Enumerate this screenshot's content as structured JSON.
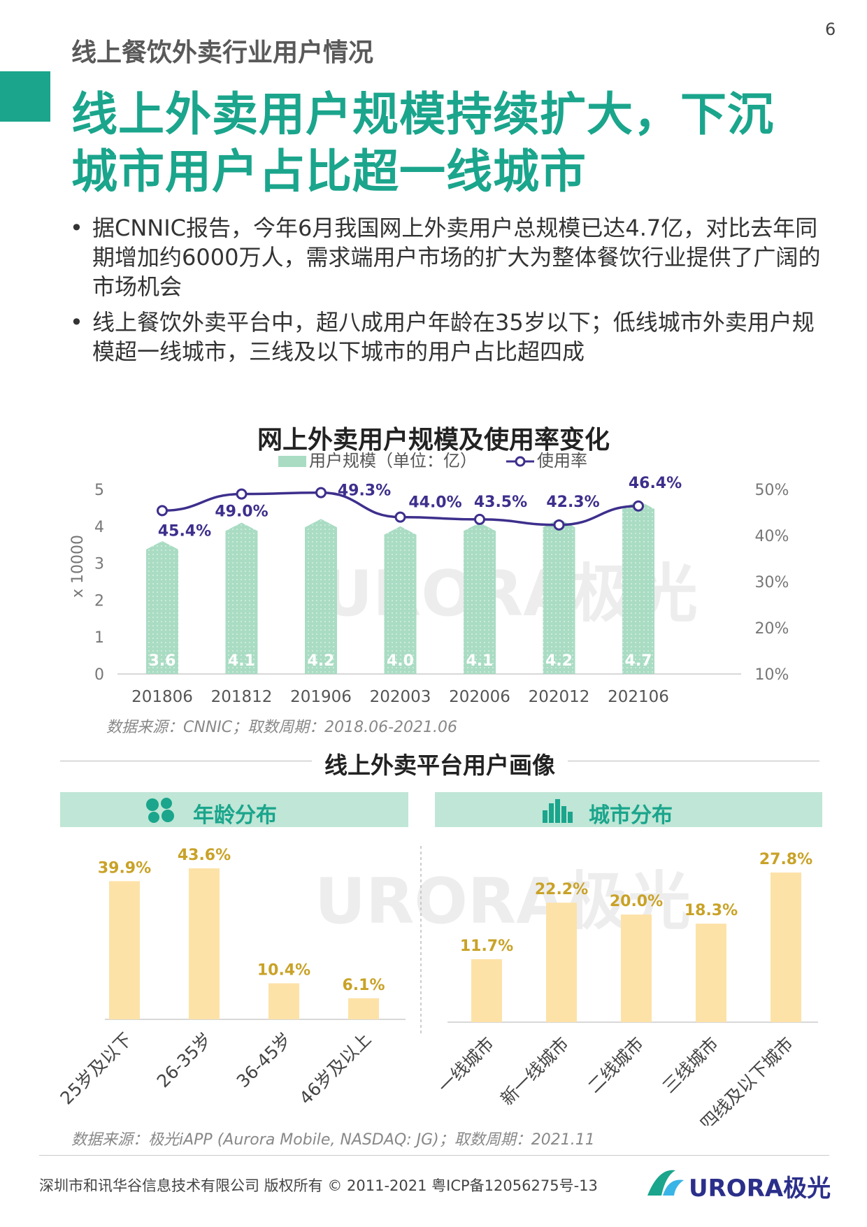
{
  "page_number": "6",
  "section_label": "线上餐饮外卖行业用户情况",
  "headline": [
    "线上外卖用户规模持续扩大，下沉",
    "城市用户占比超一线城市"
  ],
  "bullets": [
    "据CNNIC报告，今年6月我国网上外卖用户总规模已达4.7亿，对比去年同期增加约6000万人，需求端用户市场的扩大为整体餐饮行业提供了广阔的市场机会",
    "线上餐饮外卖平台中，超八成用户年龄在35岁以下；低线城市外卖用户规模超一线城市，三线及以下城市的用户占比超四成"
  ],
  "watermark": "URORA极光",
  "colors": {
    "accent": "#1aa58c",
    "bar_green": "#a9dcc3",
    "line_purple": "#3d2f8c",
    "bar_yellow": "#fde2a8",
    "label_gold": "#c9a227",
    "brand_navy": "#2b2f8a"
  },
  "chart_data": [
    {
      "type": "bar+line",
      "title": "网上外卖用户规模及使用率变化",
      "legend": {
        "placement": "top",
        "bar_label": "用户规模（单位：亿）",
        "line_label": "使用率"
      },
      "categories": [
        "201806",
        "201812",
        "201906",
        "202003",
        "202006",
        "202012",
        "202106"
      ],
      "series": [
        {
          "name": "用户规模（单位：亿）",
          "type": "bar",
          "axis": "left",
          "values": [
            3.6,
            4.1,
            4.2,
            4.0,
            4.1,
            4.2,
            4.7
          ],
          "labels": [
            "3.6",
            "4.1",
            "4.2",
            "4.0",
            "4.1",
            "4.2",
            "4.7"
          ]
        },
        {
          "name": "使用率",
          "type": "line",
          "axis": "right",
          "values": [
            45.4,
            49.0,
            49.3,
            44.0,
            43.5,
            42.3,
            46.4
          ],
          "labels": [
            "45.4%",
            "49.0%",
            "49.3%",
            "44.0%",
            "43.5%",
            "42.3%",
            "46.4%"
          ]
        }
      ],
      "y_left": {
        "label": "x 10000",
        "ticks": [
          "0",
          "1",
          "2",
          "3",
          "4",
          "5"
        ],
        "range": [
          0,
          5
        ]
      },
      "y_right": {
        "ticks": [
          "10%",
          "20%",
          "30%",
          "40%",
          "50%"
        ],
        "range": [
          10,
          50
        ]
      },
      "grid": false,
      "source": "数据来源：CNNIC；取数周期：2018.06-2021.06"
    },
    {
      "type": "bar",
      "title": "年龄分布",
      "categories": [
        "25岁及以下",
        "26-35岁",
        "36-45岁",
        "46岁及以上"
      ],
      "values": [
        39.9,
        43.6,
        10.4,
        6.1
      ],
      "labels": [
        "39.9%",
        "43.6%",
        "10.4%",
        "6.1%"
      ]
    },
    {
      "type": "bar",
      "title": "城市分布",
      "categories": [
        "一线城市",
        "新一线城市",
        "二线城市",
        "三线城市",
        "四线及以下城市"
      ],
      "values": [
        11.7,
        22.2,
        20.0,
        18.3,
        27.8
      ],
      "labels": [
        "11.7%",
        "22.2%",
        "20.0%",
        "18.3%",
        "27.8%"
      ]
    }
  ],
  "portrait_title": "线上外卖平台用户画像",
  "bottom_source": "数据来源：极光iAPP (Aurora Mobile, NASDAQ: JG)；取数周期：2021.11",
  "footer": {
    "copyright": "深圳市和讯华谷信息技术有限公司 版权所有 © 2011-2021 粤ICP备12056275号-13",
    "logo_text": "URORA极光"
  }
}
